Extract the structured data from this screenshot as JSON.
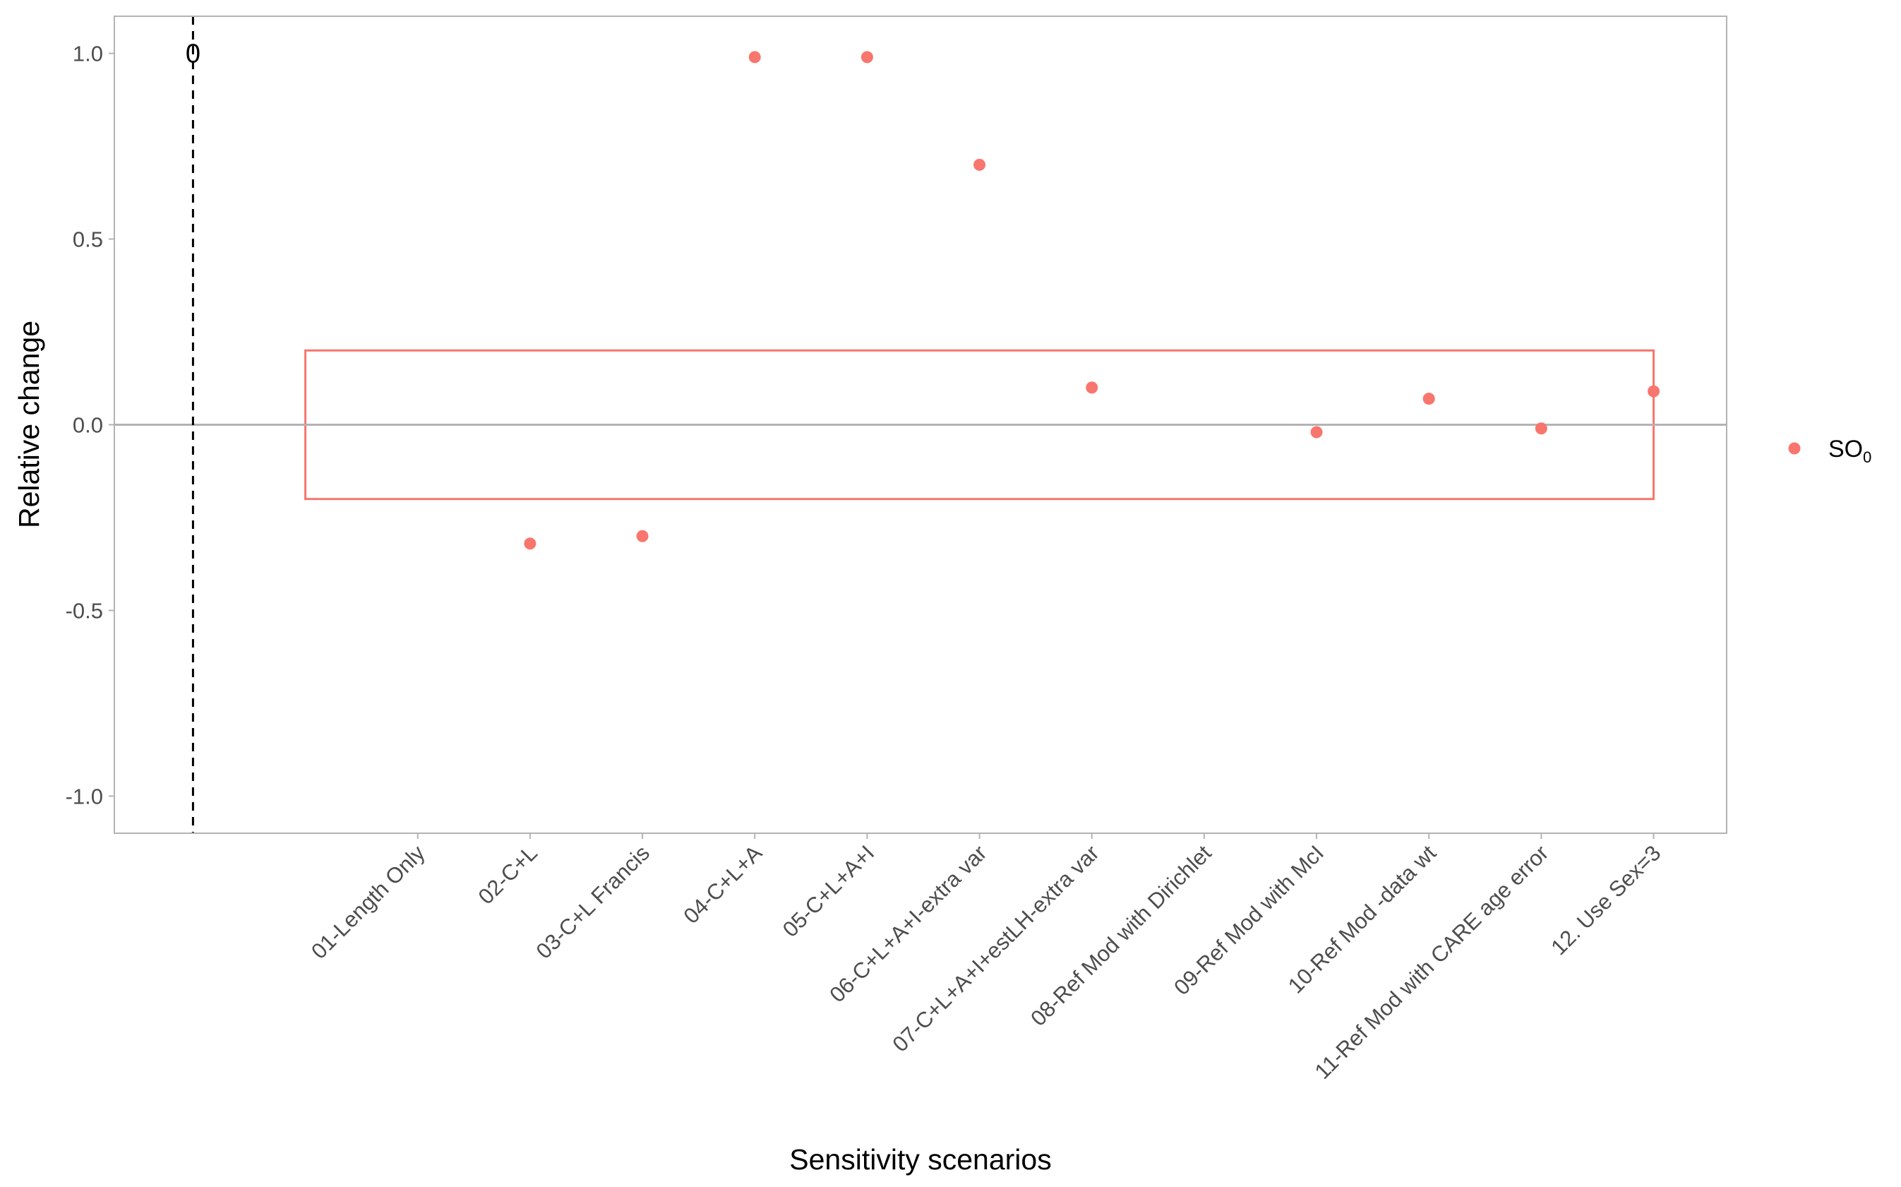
{
  "chart_data": {
    "type": "scatter",
    "title": "",
    "xlabel": "Sensitivity scenarios",
    "ylabel": "Relative change",
    "ylim": [
      -1.1,
      1.1
    ],
    "yticks": [
      -1.0,
      -0.5,
      0.0,
      0.5,
      1.0
    ],
    "ytick_labels": [
      "-1.0",
      "-0.5",
      "0.0",
      "0.5",
      "1.0"
    ],
    "categories": [
      "01-Length Only",
      "02-C+L",
      "03-C+L Francis",
      "04-C+L+A",
      "05-C+L+A+I",
      "06-C+L+A+I-extra var",
      "07-C+L+A+I+estLH-extra var",
      "08-Ref Mod with Dirichlet",
      "09-Ref Mod with McI",
      "10-Ref Mod -data wt",
      "11-Ref Mod with CARE age error",
      "12. Use Sex=3"
    ],
    "series": [
      {
        "name": "SO",
        "name_subscript": "0",
        "color": "#F8766D",
        "values": [
          null,
          -0.32,
          -0.3,
          0.99,
          0.99,
          0.7,
          0.1,
          null,
          -0.02,
          0.07,
          -0.01,
          0.09
        ]
      }
    ],
    "reference_line": {
      "label": "0",
      "style": "dashed",
      "color": "#000000"
    },
    "zero_line": {
      "y": 0.0,
      "color": "#b3b3b3"
    },
    "band": {
      "ymin": -0.2,
      "ymax": 0.2,
      "color": "#F8766D"
    },
    "grid": false,
    "legend": "right"
  }
}
